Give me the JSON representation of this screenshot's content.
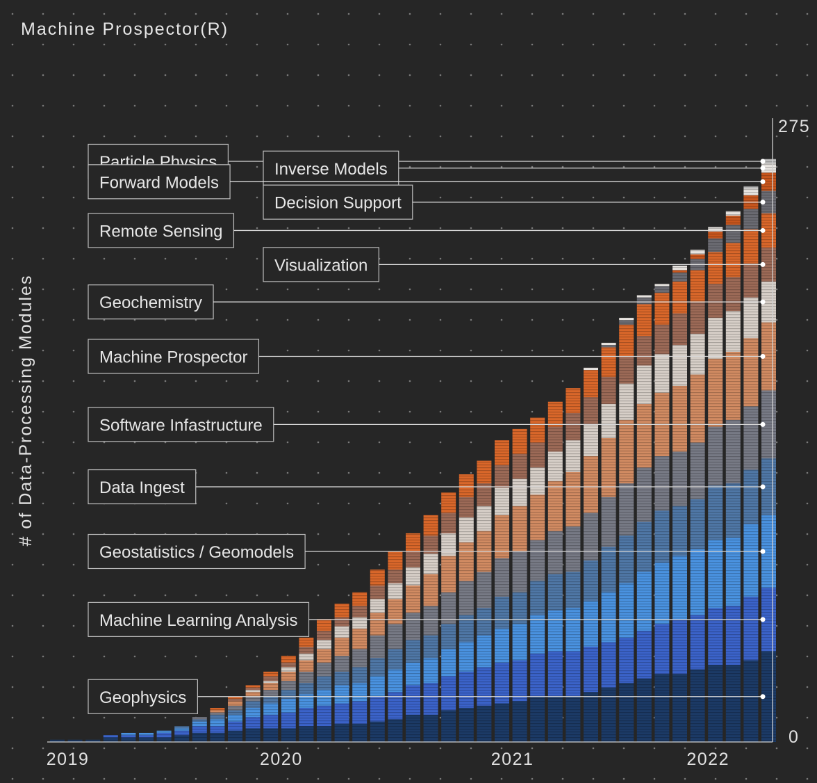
{
  "title": "Machine Prospector(R)",
  "chart_data": {
    "type": "bar",
    "stacked": true,
    "title": "Machine Prospector(R)",
    "xlabel": "",
    "ylabel": "# of Data-Processing Modules",
    "ylim": [
      0,
      275
    ],
    "y_ticks": [
      "275",
      "0"
    ],
    "x_ticks": [
      {
        "label": "2019",
        "index": 1
      },
      {
        "label": "2020",
        "index": 13
      },
      {
        "label": "2021",
        "index": 26
      },
      {
        "label": "2022",
        "index": 37
      }
    ],
    "grid": "dotted",
    "series": [
      {
        "name": "Geophysics",
        "color": "#1c3a66",
        "values": [
          1,
          1,
          1,
          2,
          2,
          2,
          2,
          3,
          4,
          4,
          5,
          6,
          6,
          6,
          7,
          7,
          8,
          8,
          9,
          10,
          12,
          12,
          14,
          15,
          16,
          17,
          18,
          20,
          20,
          20,
          22,
          24,
          26,
          28,
          30,
          30,
          32,
          34,
          34,
          36,
          40
        ]
      },
      {
        "name": "Machine Learning Analysis",
        "color": "#3b63c9",
        "values": [
          0,
          0,
          0,
          1,
          1,
          1,
          2,
          2,
          3,
          3,
          4,
          5,
          6,
          7,
          8,
          9,
          9,
          10,
          11,
          12,
          13,
          14,
          15,
          16,
          17,
          18,
          18,
          19,
          20,
          20,
          20,
          20,
          20,
          21,
          22,
          24,
          24,
          25,
          26,
          28,
          28
        ]
      },
      {
        "name": "Geostatistics / Geomodels",
        "color": "#4a92e0",
        "values": [
          0,
          0,
          0,
          0,
          1,
          1,
          1,
          1,
          2,
          3,
          3,
          4,
          5,
          6,
          6,
          7,
          8,
          8,
          9,
          10,
          10,
          11,
          12,
          13,
          14,
          15,
          16,
          17,
          18,
          19,
          20,
          22,
          24,
          26,
          27,
          28,
          29,
          30,
          30,
          32,
          32
        ]
      },
      {
        "name": "Data Ingest",
        "color": "#4f77a6",
        "values": [
          0,
          0,
          0,
          0,
          0,
          0,
          0,
          1,
          1,
          2,
          2,
          3,
          3,
          4,
          5,
          6,
          6,
          7,
          8,
          9,
          10,
          10,
          11,
          12,
          12,
          14,
          14,
          15,
          16,
          16,
          18,
          20,
          21,
          22,
          23,
          22,
          22,
          24,
          24,
          24,
          25
        ]
      },
      {
        "name": "Software Infastructure",
        "color": "#777a85",
        "values": [
          0,
          0,
          0,
          0,
          0,
          0,
          0,
          0,
          1,
          1,
          2,
          2,
          3,
          4,
          5,
          6,
          7,
          8,
          10,
          11,
          12,
          13,
          14,
          15,
          16,
          17,
          18,
          18,
          19,
          20,
          21,
          22,
          23,
          24,
          24,
          24,
          25,
          26,
          28,
          28,
          30
        ]
      },
      {
        "name": "Machine Prospector",
        "color": "#d18b62",
        "values": [
          0,
          0,
          0,
          0,
          0,
          0,
          0,
          0,
          0,
          1,
          2,
          2,
          3,
          4,
          5,
          6,
          8,
          9,
          10,
          11,
          12,
          14,
          16,
          17,
          18,
          19,
          20,
          20,
          22,
          24,
          25,
          26,
          28,
          28,
          28,
          29,
          30,
          30,
          30,
          30,
          30
        ]
      },
      {
        "name": "Geochemistry",
        "color": "#d7cfc8",
        "values": [
          0,
          0,
          0,
          0,
          0,
          0,
          0,
          0,
          0,
          0,
          0,
          1,
          1,
          2,
          3,
          4,
          5,
          5,
          6,
          7,
          8,
          9,
          10,
          11,
          11,
          12,
          12,
          12,
          13,
          14,
          14,
          15,
          16,
          17,
          17,
          18,
          18,
          18,
          18,
          18,
          18
        ]
      },
      {
        "name": "Visualization",
        "color": "#9c6a57",
        "values": [
          0,
          0,
          0,
          0,
          0,
          0,
          0,
          0,
          0,
          0,
          1,
          1,
          2,
          2,
          3,
          4,
          4,
          5,
          6,
          6,
          7,
          8,
          9,
          9,
          10,
          10,
          11,
          11,
          11,
          12,
          12,
          12,
          12,
          13,
          13,
          14,
          14,
          15,
          15,
          15,
          15
        ]
      },
      {
        "name": "Remote Sensing",
        "color": "#d9672a",
        "values": [
          0,
          0,
          0,
          0,
          0,
          0,
          0,
          0,
          0,
          1,
          1,
          1,
          2,
          3,
          4,
          5,
          6,
          6,
          7,
          8,
          8,
          9,
          9,
          10,
          10,
          11,
          11,
          11,
          11,
          11,
          12,
          13,
          14,
          14,
          14,
          14,
          14,
          14,
          15,
          15,
          15
        ]
      },
      {
        "name": "Decision Support",
        "color": "#6b6b72",
        "values": [
          0,
          0,
          0,
          0,
          0,
          0,
          0,
          0,
          0,
          0,
          0,
          0,
          0,
          0,
          0,
          0,
          0,
          0,
          0,
          0,
          0,
          0,
          0,
          0,
          0,
          0,
          0,
          0,
          0,
          0,
          0,
          1,
          2,
          3,
          3,
          4,
          5,
          6,
          8,
          9,
          10
        ]
      },
      {
        "name": "Forward Models",
        "color": "#c8561d",
        "values": [
          0,
          0,
          0,
          0,
          0,
          0,
          0,
          0,
          0,
          0,
          0,
          0,
          0,
          0,
          0,
          0,
          0,
          0,
          0,
          0,
          0,
          0,
          0,
          0,
          0,
          0,
          0,
          0,
          0,
          0,
          0,
          0,
          0,
          0,
          0,
          1,
          2,
          3,
          4,
          6,
          8
        ]
      },
      {
        "name": "Inverse Models",
        "color": "#e8e4e0",
        "values": [
          0,
          0,
          0,
          0,
          0,
          0,
          0,
          0,
          0,
          0,
          0,
          0,
          0,
          0,
          0,
          0,
          0,
          0,
          0,
          0,
          0,
          0,
          0,
          0,
          0,
          0,
          0,
          0,
          0,
          0,
          1,
          1,
          1,
          1,
          1,
          2,
          2,
          2,
          2,
          3,
          4
        ]
      },
      {
        "name": "Particle Physics",
        "color": "#bdbdbd",
        "values": [
          0,
          0,
          0,
          0,
          0,
          0,
          0,
          0,
          0,
          0,
          0,
          0,
          0,
          0,
          0,
          0,
          0,
          0,
          0,
          0,
          0,
          0,
          0,
          0,
          0,
          0,
          0,
          0,
          0,
          0,
          0,
          0,
          0,
          0,
          0,
          0,
          0,
          0,
          0,
          1,
          2
        ]
      }
    ],
    "callouts": [
      {
        "label": "Particle Physics"
      },
      {
        "label": "Inverse Models"
      },
      {
        "label": "Forward Models"
      },
      {
        "label": "Decision Support"
      },
      {
        "label": "Remote Sensing"
      },
      {
        "label": "Visualization"
      },
      {
        "label": "Geochemistry"
      },
      {
        "label": "Machine Prospector"
      },
      {
        "label": "Software Infastructure"
      },
      {
        "label": "Data Ingest"
      },
      {
        "label": "Geostatistics / Geomodels"
      },
      {
        "label": "Machine Learning Analysis"
      },
      {
        "label": "Geophysics"
      }
    ]
  }
}
